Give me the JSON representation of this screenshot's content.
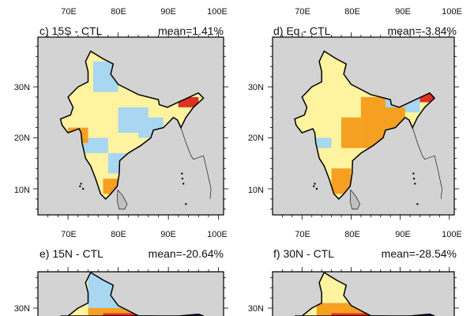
{
  "top_row_x_labels": [
    "70E",
    "80E",
    "90E",
    "100E"
  ],
  "panels": [
    {
      "id": "c",
      "title": "c) 15S - CTL",
      "mean": "mean=1.41%",
      "x_labels": [
        "70E",
        "80E",
        "90E",
        "100E"
      ],
      "y_labels": [
        "30N",
        "20N",
        "10N"
      ]
    },
    {
      "id": "d",
      "title": "d) Eq - CTL",
      "mean": "mean=-3.84%",
      "x_labels": [
        "70E",
        "80E",
        "90E",
        "100E"
      ],
      "y_labels": [
        "30N",
        "20N",
        "10N"
      ]
    },
    {
      "id": "e",
      "title": "e) 15N - CTL",
      "mean": "mean=-20.64%",
      "y_labels": [
        "30N"
      ]
    },
    {
      "id": "f",
      "title": "f) 30N - CTL",
      "mean": "mean=-28.54%",
      "y_labels": [
        "30N"
      ]
    }
  ],
  "colors": {
    "ocean_land_background": "#d3d3d3",
    "light_yellow": "#fff3a0",
    "light_blue": "#a9d6f0",
    "orange": "#f5a020",
    "red": "#e03020",
    "dark_blue": "#1030c0",
    "border": "#000000"
  }
}
